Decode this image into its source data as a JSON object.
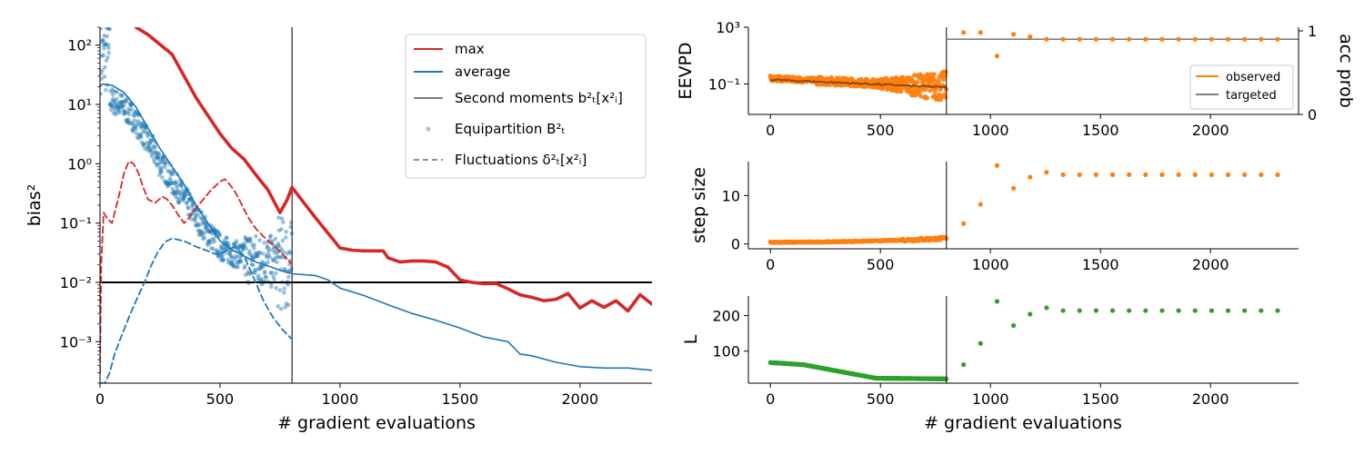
{
  "chart_data": [
    {
      "type": "line",
      "xlabel": "# gradient evaluations",
      "ylabel": "bias²",
      "xlim": [
        0,
        2300
      ],
      "ylim": [
        0.0002,
        200
      ],
      "yscale": "log",
      "xticks": [
        "0",
        "500",
        "1000",
        "1500",
        "2000"
      ],
      "yticks": [
        "10²",
        "10¹",
        "10⁰",
        "10⁻¹",
        "10⁻²",
        "10⁻³"
      ],
      "hline": 0.01,
      "vline": 800,
      "legend_position": "top-right",
      "legend": [
        {
          "label": "max",
          "style": "red-line"
        },
        {
          "label": "average",
          "style": "blue-line"
        },
        {
          "label": "Second moments b²ₜ[x²ᵢ]",
          "style": "gray-line"
        },
        {
          "label": "Equipartition B²ₜ",
          "style": "gray-dot"
        },
        {
          "label": "Fluctuations δ²ₜ[x²ᵢ]",
          "style": "gray-dash"
        }
      ],
      "series": [
        {
          "name": "max",
          "style": "solid",
          "color": "#d62728",
          "x": [
            150,
            200,
            300,
            400,
            500,
            550,
            600,
            650,
            700,
            750,
            780,
            800,
            900,
            1000,
            1050,
            1100,
            1180,
            1200,
            1250,
            1300,
            1350,
            1400,
            1450,
            1500,
            1550,
            1600,
            1650,
            1700,
            1750,
            1800,
            1850,
            1900,
            1950,
            2000,
            2050,
            2100,
            2150,
            2200,
            2250,
            2300
          ],
          "y": [
            200,
            150,
            70,
            13,
            3.2,
            1.8,
            1.2,
            0.65,
            0.36,
            0.15,
            0.25,
            0.4,
            0.12,
            0.038,
            0.035,
            0.034,
            0.034,
            0.026,
            0.022,
            0.023,
            0.023,
            0.022,
            0.018,
            0.011,
            0.01,
            0.0095,
            0.0096,
            0.0078,
            0.0062,
            0.0056,
            0.0049,
            0.0052,
            0.0065,
            0.0037,
            0.0049,
            0.0038,
            0.0049,
            0.0033,
            0.0062,
            0.0043
          ]
        },
        {
          "name": "average",
          "style": "solid",
          "color": "#1f77b4",
          "x": [
            0,
            10,
            50,
            100,
            150,
            200,
            250,
            300,
            350,
            400,
            450,
            500,
            550,
            600,
            650,
            700,
            750,
            800,
            900,
            950,
            1000,
            1100,
            1200,
            1300,
            1400,
            1500,
            1600,
            1700,
            1750,
            1800,
            1900,
            2000,
            2100,
            2200,
            2300
          ],
          "y": [
            20,
            22,
            21,
            16,
            9,
            4,
            1.8,
            0.9,
            0.45,
            0.2,
            0.1,
            0.05,
            0.035,
            0.028,
            0.022,
            0.019,
            0.016,
            0.014,
            0.013,
            0.011,
            0.008,
            0.006,
            0.0042,
            0.003,
            0.0023,
            0.0017,
            0.0012,
            0.001,
            0.00062,
            0.00058,
            0.00045,
            0.00038,
            0.00036,
            0.00036,
            0.00033
          ]
        },
        {
          "name": "Fluctuations max",
          "style": "dashed",
          "color": "#d62728",
          "x": [
            0,
            5,
            15,
            30,
            50,
            80,
            100,
            120,
            140,
            160,
            180,
            200,
            230,
            260,
            280,
            300,
            330,
            350,
            370,
            400,
            430,
            460,
            500,
            520,
            540,
            560,
            580,
            600,
            620,
            650,
            680,
            700,
            730,
            760,
            800
          ],
          "y": [
            0.0003,
            0.02,
            0.15,
            0.12,
            0.1,
            0.3,
            0.7,
            1.1,
            1.0,
            0.7,
            0.4,
            0.25,
            0.22,
            0.28,
            0.25,
            0.2,
            0.13,
            0.1,
            0.12,
            0.18,
            0.25,
            0.35,
            0.5,
            0.55,
            0.45,
            0.35,
            0.25,
            0.17,
            0.12,
            0.08,
            0.06,
            0.05,
            0.04,
            0.03,
            0.02
          ]
        },
        {
          "name": "Fluctuations average",
          "style": "dashed",
          "color": "#1f77b4",
          "x": [
            0,
            20,
            40,
            60,
            80,
            100,
            130,
            160,
            190,
            210,
            240,
            270,
            300,
            330,
            360,
            400,
            440,
            480,
            500,
            530,
            560,
            600,
            640,
            680,
            720,
            760,
            800
          ],
          "y": [
            0.0002,
            0.0002,
            0.0003,
            0.0006,
            0.001,
            0.0016,
            0.0032,
            0.006,
            0.011,
            0.018,
            0.032,
            0.048,
            0.055,
            0.052,
            0.048,
            0.04,
            0.035,
            0.03,
            0.03,
            0.035,
            0.04,
            0.028,
            0.012,
            0.005,
            0.0026,
            0.0016,
            0.0011
          ]
        }
      ],
      "scatter_note": "Equipartition B²ₜ samples (blue dots) for x ∈ [0, 800]"
    },
    {
      "type": "scatter",
      "ylabel": "EEVPD",
      "ylabel_right": "acc prob",
      "xlim": [
        -100,
        2400
      ],
      "ylim": [
        0.0007,
        1000
      ],
      "yscale": "log",
      "xticks": [
        "0",
        "500",
        "1000",
        "1500",
        "2000"
      ],
      "yticks": [
        "10³",
        "10⁻¹"
      ],
      "yticks_right": [
        "1",
        "0"
      ],
      "vline": 800,
      "legend_position": "lower-right",
      "legend": [
        {
          "label": "observed",
          "color": "#ff7f0e"
        },
        {
          "label": "targeted",
          "color": "#7f7f7f"
        }
      ],
      "targeted_acc_prob": 0.9,
      "observed_acc_prob": {
        "x": [
          878,
          955,
          1030,
          1105,
          1180,
          1255,
          1330,
          1405,
          1480,
          1555,
          1630,
          1705,
          1780,
          1855,
          1930,
          2005,
          2080,
          2155,
          2230,
          2305
        ],
        "y": [
          0.98,
          0.98,
          0.7,
          0.96,
          0.93,
          0.9,
          0.9,
          0.9,
          0.9,
          0.9,
          0.9,
          0.9,
          0.9,
          0.9,
          0.9,
          0.9,
          0.9,
          0.9,
          0.9,
          0.9
        ]
      }
    },
    {
      "type": "scatter",
      "ylabel": "step size",
      "xlim": [
        -100,
        2400
      ],
      "ylim": [
        -1,
        17
      ],
      "xticks": [
        "0",
        "500",
        "1000",
        "1500",
        "2000"
      ],
      "yticks": [
        "0",
        "10"
      ],
      "vline": 800,
      "series": [
        {
          "name": "step size",
          "color": "#ff7f0e",
          "x": [
            878,
            955,
            1030,
            1105,
            1180,
            1255,
            1330,
            1405,
            1480,
            1555,
            1630,
            1705,
            1780,
            1855,
            1930,
            2005,
            2080,
            2155,
            2230,
            2305
          ],
          "y": [
            4.2,
            8.2,
            16.2,
            11.5,
            13.8,
            14.8,
            14.3,
            14.3,
            14.3,
            14.3,
            14.3,
            14.3,
            14.3,
            14.3,
            14.3,
            14.3,
            14.3,
            14.3,
            14.3,
            14.3
          ]
        }
      ]
    },
    {
      "type": "scatter",
      "xlabel": "# gradient evaluations",
      "ylabel": "L",
      "xlim": [
        -100,
        2400
      ],
      "ylim": [
        10,
        255
      ],
      "xticks": [
        "0",
        "500",
        "1000",
        "1500",
        "2000"
      ],
      "yticks": [
        "100",
        "200"
      ],
      "vline": 800,
      "series": [
        {
          "name": "L",
          "color": "#2ca02c",
          "x": [
            878,
            955,
            1030,
            1105,
            1180,
            1255,
            1330,
            1405,
            1480,
            1555,
            1630,
            1705,
            1780,
            1855,
            1930,
            2005,
            2080,
            2155,
            2230,
            2305
          ],
          "y": [
            62,
            122,
            240,
            172,
            204,
            222,
            214,
            214,
            214,
            214,
            214,
            214,
            214,
            214,
            214,
            214,
            214,
            214,
            214,
            214
          ]
        }
      ]
    }
  ]
}
